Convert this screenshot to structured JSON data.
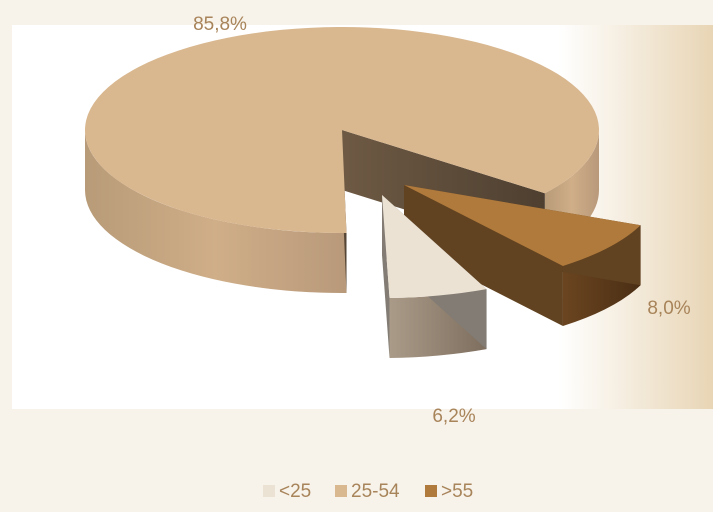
{
  "chart_data": {
    "type": "pie",
    "style": "3d-exploded",
    "categories": [
      "<25",
      "25-54",
      ">55"
    ],
    "values": [
      6.2,
      85.8,
      8.0
    ],
    "data_labels": [
      "6,2%",
      "85,8%",
      "8,0%"
    ],
    "colors": [
      "#ece2d3",
      "#d9b78f",
      "#b07a3c"
    ],
    "legend": {
      "position": "bottom",
      "entries": [
        "<25",
        "25-54",
        ">55"
      ]
    }
  }
}
